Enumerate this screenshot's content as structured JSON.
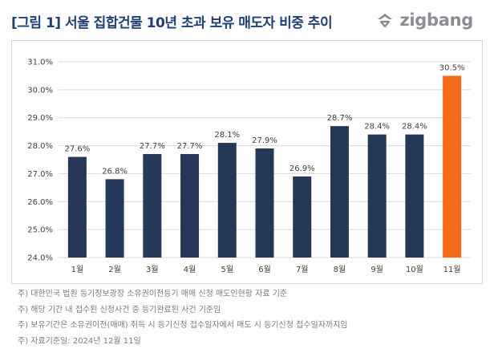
{
  "header": {
    "title": "[그림 1] 서울 집합건물 10년 초과 보유 매도자 비중 추이",
    "logo_text": "zigbang",
    "logo_icon": "zigbang-logo-icon"
  },
  "chart_data": {
    "type": "bar",
    "categories": [
      "1월",
      "2월",
      "3월",
      "4월",
      "5월",
      "6월",
      "7월",
      "8월",
      "9월",
      "10월",
      "11월"
    ],
    "values": [
      27.6,
      26.8,
      27.7,
      27.7,
      28.1,
      27.9,
      26.9,
      28.7,
      28.4,
      28.4,
      30.5
    ],
    "data_labels": [
      "27.6%",
      "26.8%",
      "27.7%",
      "27.7%",
      "28.1%",
      "27.9%",
      "26.9%",
      "28.7%",
      "28.4%",
      "28.4%",
      "30.5%"
    ],
    "yticks": [
      24,
      25,
      26,
      27,
      28,
      29,
      30,
      31
    ],
    "ytick_labels": [
      "24.0%",
      "25.0%",
      "26.0%",
      "27.0%",
      "28.0%",
      "29.0%",
      "30.0%",
      "31.0%"
    ],
    "ylim": [
      24,
      31
    ],
    "grid": true,
    "colors": {
      "bar": "#253858",
      "highlight": "#f56b1b",
      "grid": "#dadada",
      "label": "#404040"
    },
    "highlight_index": 10
  },
  "notes": [
    "주) 대한민국 법원 등기정보광장 소유권이전등기 매매 신청 매도인현황 자료 기준",
    "주) 해당 기간 내 접수된 신청사건 중 등기완료된 사건 기준임",
    "주) 보유기간은 소유권이전(매매) 취득 시 등기신청 접수일자에서 매도 시 등기신청 접수일자까지임",
    "주) 자료기준일: 2024년 12월 11일"
  ]
}
